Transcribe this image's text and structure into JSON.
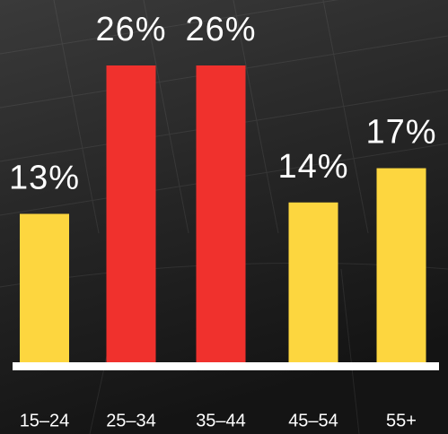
{
  "chart_data": {
    "type": "bar",
    "categories": [
      "15–24",
      "25–34",
      "35–44",
      "45–54",
      "55+"
    ],
    "values": [
      13,
      26,
      26,
      14,
      17
    ],
    "value_labels": [
      "13%",
      "26%",
      "26%",
      "14%",
      "17%"
    ],
    "colors": [
      "#fdd63f",
      "#f0312d",
      "#f0312d",
      "#fdd63f",
      "#fdd63f"
    ]
  }
}
